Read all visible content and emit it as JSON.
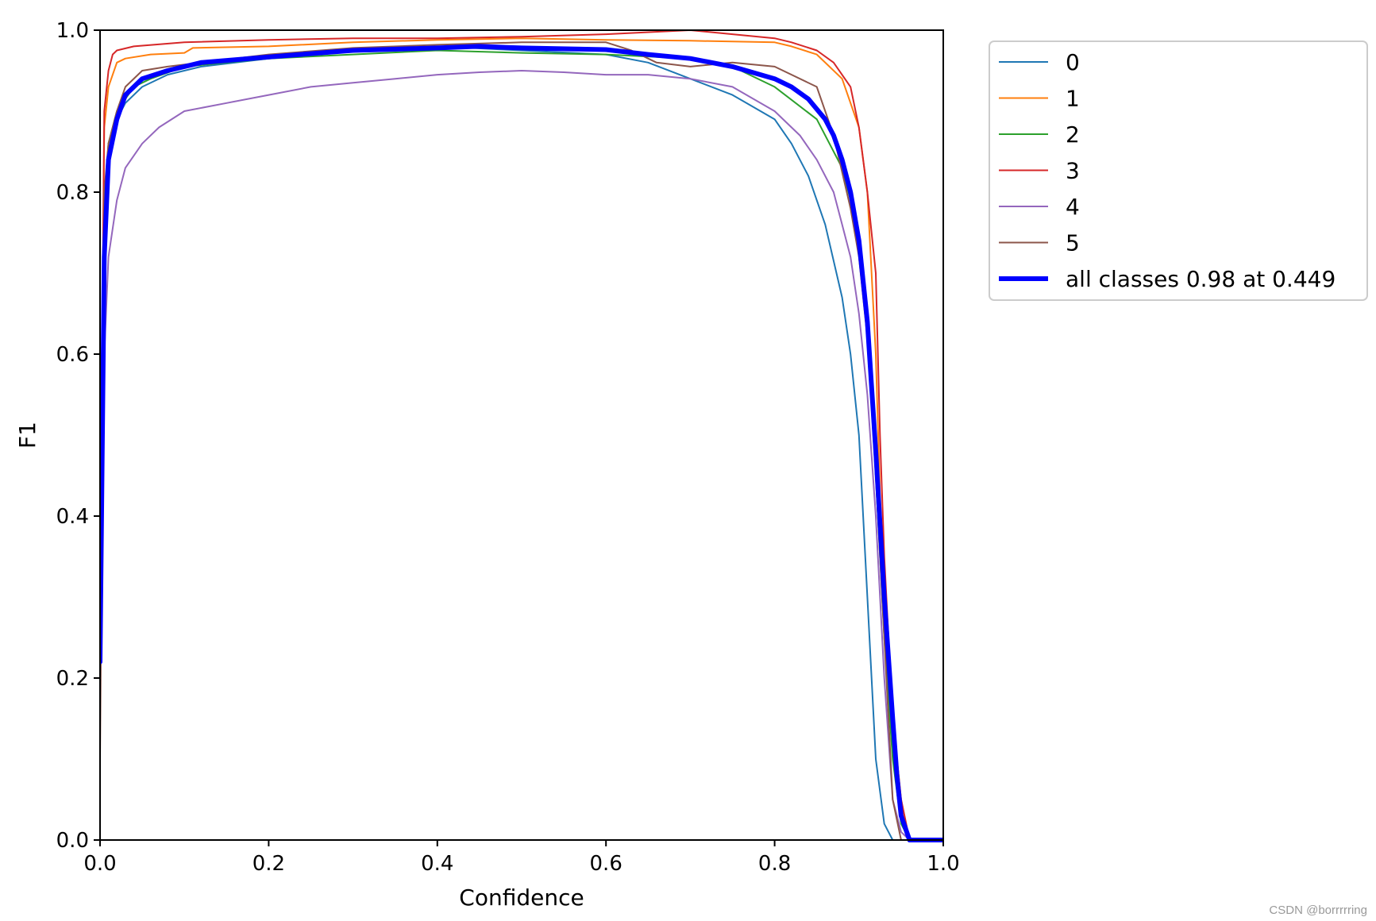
{
  "chart_data": {
    "type": "line",
    "title": "",
    "xlabel": "Confidence",
    "ylabel": "F1",
    "xlim": [
      0,
      1
    ],
    "ylim": [
      0,
      1
    ],
    "xticks": [
      "0.0",
      "0.2",
      "0.4",
      "0.6",
      "0.8",
      "1.0"
    ],
    "yticks": [
      "0.0",
      "0.2",
      "0.4",
      "0.6",
      "0.8",
      "1.0"
    ],
    "grid": false,
    "legend_position": "outside-top-right",
    "series": [
      {
        "name": "0",
        "color": "#1f77b4",
        "width": 2,
        "x": [
          0,
          0.005,
          0.01,
          0.02,
          0.03,
          0.05,
          0.08,
          0.12,
          0.2,
          0.3,
          0.4,
          0.5,
          0.6,
          0.65,
          0.7,
          0.75,
          0.8,
          0.82,
          0.84,
          0.86,
          0.88,
          0.89,
          0.9,
          0.91,
          0.92,
          0.93,
          0.94,
          0.96,
          1.0
        ],
        "y": [
          0.2,
          0.75,
          0.86,
          0.89,
          0.91,
          0.93,
          0.945,
          0.955,
          0.965,
          0.975,
          0.98,
          0.975,
          0.97,
          0.96,
          0.94,
          0.92,
          0.89,
          0.86,
          0.82,
          0.76,
          0.67,
          0.6,
          0.5,
          0.3,
          0.1,
          0.02,
          0.0,
          0.0,
          0.0
        ]
      },
      {
        "name": "1",
        "color": "#ff7f0e",
        "width": 2,
        "x": [
          0,
          0.005,
          0.01,
          0.02,
          0.03,
          0.06,
          0.1,
          0.11,
          0.2,
          0.3,
          0.4,
          0.5,
          0.6,
          0.7,
          0.8,
          0.82,
          0.85,
          0.88,
          0.9,
          0.91,
          0.92,
          0.93,
          0.94,
          0.95,
          0.96,
          1.0
        ],
        "y": [
          0.3,
          0.88,
          0.93,
          0.96,
          0.965,
          0.97,
          0.972,
          0.978,
          0.98,
          0.985,
          0.988,
          0.99,
          0.988,
          0.987,
          0.985,
          0.98,
          0.97,
          0.94,
          0.88,
          0.8,
          0.6,
          0.25,
          0.15,
          0.05,
          0.0,
          0.0
        ]
      },
      {
        "name": "2",
        "color": "#2ca02c",
        "width": 2,
        "x": [
          0,
          0.005,
          0.01,
          0.02,
          0.04,
          0.06,
          0.1,
          0.2,
          0.3,
          0.4,
          0.5,
          0.6,
          0.7,
          0.75,
          0.8,
          0.85,
          0.88,
          0.9,
          0.91,
          0.92,
          0.93,
          0.94,
          0.95,
          0.96,
          1.0
        ],
        "y": [
          0.2,
          0.78,
          0.86,
          0.9,
          0.93,
          0.94,
          0.955,
          0.965,
          0.97,
          0.975,
          0.972,
          0.97,
          0.965,
          0.955,
          0.93,
          0.89,
          0.83,
          0.75,
          0.65,
          0.45,
          0.25,
          0.1,
          0.02,
          0.0,
          0.0
        ]
      },
      {
        "name": "3",
        "color": "#d62728",
        "width": 2,
        "x": [
          0,
          0.005,
          0.01,
          0.015,
          0.02,
          0.04,
          0.1,
          0.2,
          0.3,
          0.4,
          0.5,
          0.6,
          0.7,
          0.75,
          0.8,
          0.82,
          0.85,
          0.87,
          0.89,
          0.9,
          0.91,
          0.92,
          0.925,
          0.93,
          0.94,
          0.95,
          0.96,
          1.0
        ],
        "y": [
          0.3,
          0.9,
          0.95,
          0.97,
          0.975,
          0.98,
          0.985,
          0.988,
          0.99,
          0.99,
          0.992,
          0.995,
          1.0,
          0.995,
          0.99,
          0.985,
          0.975,
          0.96,
          0.93,
          0.88,
          0.8,
          0.7,
          0.5,
          0.35,
          0.15,
          0.05,
          0.0,
          0.0
        ]
      },
      {
        "name": "4",
        "color": "#9467bd",
        "width": 2,
        "x": [
          0,
          0.005,
          0.01,
          0.02,
          0.03,
          0.05,
          0.07,
          0.1,
          0.15,
          0.2,
          0.25,
          0.3,
          0.35,
          0.4,
          0.45,
          0.5,
          0.55,
          0.6,
          0.65,
          0.7,
          0.75,
          0.8,
          0.83,
          0.85,
          0.87,
          0.88,
          0.89,
          0.9,
          0.91,
          0.92,
          0.93,
          0.94,
          0.95,
          0.96,
          1.0
        ],
        "y": [
          0.3,
          0.6,
          0.72,
          0.79,
          0.83,
          0.86,
          0.88,
          0.9,
          0.91,
          0.92,
          0.93,
          0.935,
          0.94,
          0.945,
          0.948,
          0.95,
          0.948,
          0.945,
          0.945,
          0.94,
          0.93,
          0.9,
          0.87,
          0.84,
          0.8,
          0.76,
          0.72,
          0.65,
          0.55,
          0.4,
          0.2,
          0.05,
          0.01,
          0.0,
          0.0
        ]
      },
      {
        "name": "5",
        "color": "#8c564b",
        "width": 2,
        "x": [
          0,
          0.003,
          0.005,
          0.01,
          0.02,
          0.03,
          0.05,
          0.08,
          0.12,
          0.2,
          0.3,
          0.4,
          0.5,
          0.6,
          0.63,
          0.66,
          0.7,
          0.75,
          0.8,
          0.85,
          0.87,
          0.89,
          0.9,
          0.91,
          0.92,
          0.93,
          0.94,
          0.95,
          1.0
        ],
        "y": [
          0.1,
          0.5,
          0.8,
          0.86,
          0.9,
          0.93,
          0.95,
          0.955,
          0.96,
          0.97,
          0.978,
          0.982,
          0.985,
          0.985,
          0.975,
          0.96,
          0.955,
          0.96,
          0.955,
          0.93,
          0.87,
          0.78,
          0.72,
          0.62,
          0.45,
          0.25,
          0.05,
          0.0,
          0.0
        ]
      },
      {
        "name": "all classes 0.98 at 0.449",
        "color": "#0000ff",
        "width": 6,
        "x": [
          0,
          0.005,
          0.01,
          0.02,
          0.03,
          0.05,
          0.08,
          0.12,
          0.2,
          0.3,
          0.4,
          0.449,
          0.5,
          0.6,
          0.65,
          0.7,
          0.75,
          0.8,
          0.82,
          0.84,
          0.86,
          0.87,
          0.88,
          0.89,
          0.9,
          0.91,
          0.92,
          0.93,
          0.94,
          0.945,
          0.95,
          0.96,
          1.0
        ],
        "y": [
          0.22,
          0.72,
          0.84,
          0.89,
          0.92,
          0.94,
          0.95,
          0.96,
          0.967,
          0.975,
          0.978,
          0.98,
          0.978,
          0.976,
          0.97,
          0.965,
          0.955,
          0.94,
          0.93,
          0.915,
          0.89,
          0.87,
          0.84,
          0.8,
          0.74,
          0.64,
          0.48,
          0.3,
          0.15,
          0.08,
          0.03,
          0.0,
          0.0
        ]
      }
    ]
  },
  "watermark": "CSDN @borrrrring"
}
